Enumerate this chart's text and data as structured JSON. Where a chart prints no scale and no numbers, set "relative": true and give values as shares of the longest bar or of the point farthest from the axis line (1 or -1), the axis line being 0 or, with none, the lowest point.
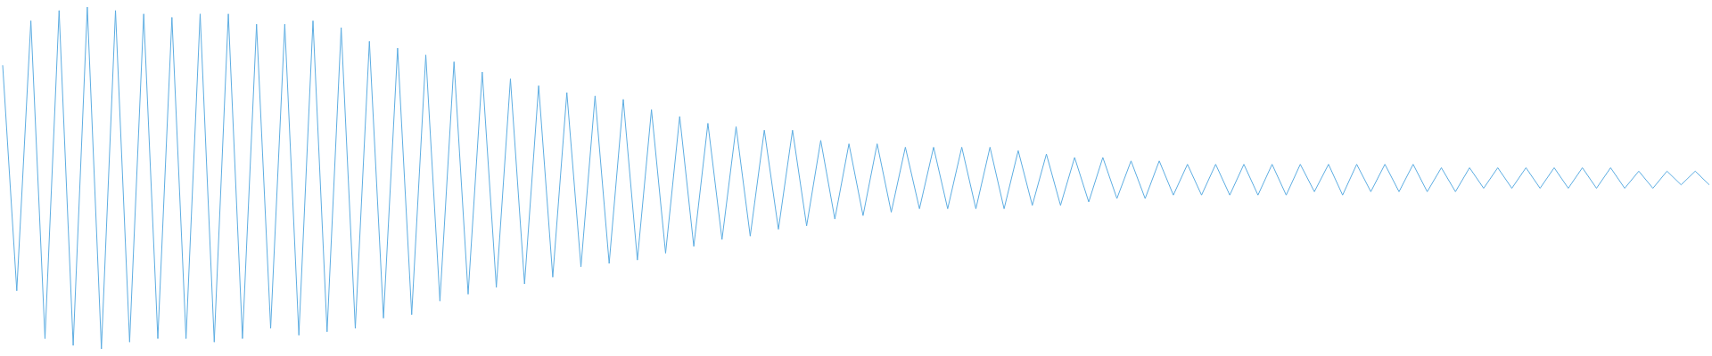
{
  "chart_data": {
    "type": "line",
    "relative": true,
    "grid": false,
    "marker": "none",
    "line_style": "solid",
    "categories": [
      null,
      null,
      null,
      null,
      null,
      null,
      null,
      null,
      null,
      null,
      null,
      null,
      null,
      null,
      null,
      null,
      null,
      null,
      null,
      null,
      null,
      null,
      null,
      null,
      null,
      null,
      null,
      null,
      null,
      null,
      null,
      null,
      null,
      null,
      null,
      null,
      null,
      null,
      null,
      null,
      null,
      null,
      null,
      null,
      null,
      null,
      null,
      null,
      null,
      null,
      null,
      null,
      null,
      null,
      null,
      null,
      null,
      null,
      null,
      null,
      null,
      null,
      null,
      null,
      null,
      null,
      null,
      null,
      null,
      null,
      null,
      null,
      null,
      null,
      null,
      null,
      null,
      null,
      null,
      null,
      null,
      null,
      null,
      null,
      null,
      null,
      null,
      null,
      null,
      null,
      null,
      null,
      null,
      null,
      null,
      null,
      null,
      null,
      null,
      null,
      null,
      null,
      null,
      null,
      null,
      null,
      null,
      null,
      null,
      null,
      null,
      null,
      null,
      null,
      null,
      null,
      null,
      null,
      null,
      null,
      null,
      null
    ],
    "series": [
      {
        "color": "#5dade2",
        "values": [
          0.83,
          0.17,
          0.96,
          0.03,
          0.99,
          0.01,
          1.0,
          0.0,
          0.99,
          0.02,
          0.98,
          0.03,
          0.97,
          0.03,
          0.98,
          0.02,
          0.98,
          0.03,
          0.95,
          0.06,
          0.95,
          0.04,
          0.96,
          0.05,
          0.94,
          0.06,
          0.9,
          0.09,
          0.88,
          0.1,
          0.86,
          0.14,
          0.84,
          0.16,
          0.81,
          0.18,
          0.79,
          0.19,
          0.77,
          0.21,
          0.75,
          0.24,
          0.74,
          0.25,
          0.73,
          0.26,
          0.7,
          0.28,
          0.68,
          0.3,
          0.66,
          0.32,
          0.65,
          0.33,
          0.64,
          0.35,
          0.64,
          0.36,
          0.61,
          0.38,
          0.6,
          0.39,
          0.6,
          0.4,
          0.59,
          0.41,
          0.59,
          0.41,
          0.59,
          0.41,
          0.59,
          0.41,
          0.58,
          0.42,
          0.57,
          0.42,
          0.56,
          0.43,
          0.56,
          0.44,
          0.55,
          0.44,
          0.55,
          0.45,
          0.54,
          0.45,
          0.54,
          0.45,
          0.54,
          0.45,
          0.54,
          0.45,
          0.54,
          0.46,
          0.54,
          0.45,
          0.54,
          0.46,
          0.54,
          0.46,
          0.54,
          0.46,
          0.53,
          0.46,
          0.53,
          0.47,
          0.53,
          0.47,
          0.53,
          0.47,
          0.53,
          0.47,
          0.53,
          0.47,
          0.53,
          0.47,
          0.52,
          0.47,
          0.52,
          0.48,
          0.52,
          0.48
        ]
      }
    ]
  }
}
